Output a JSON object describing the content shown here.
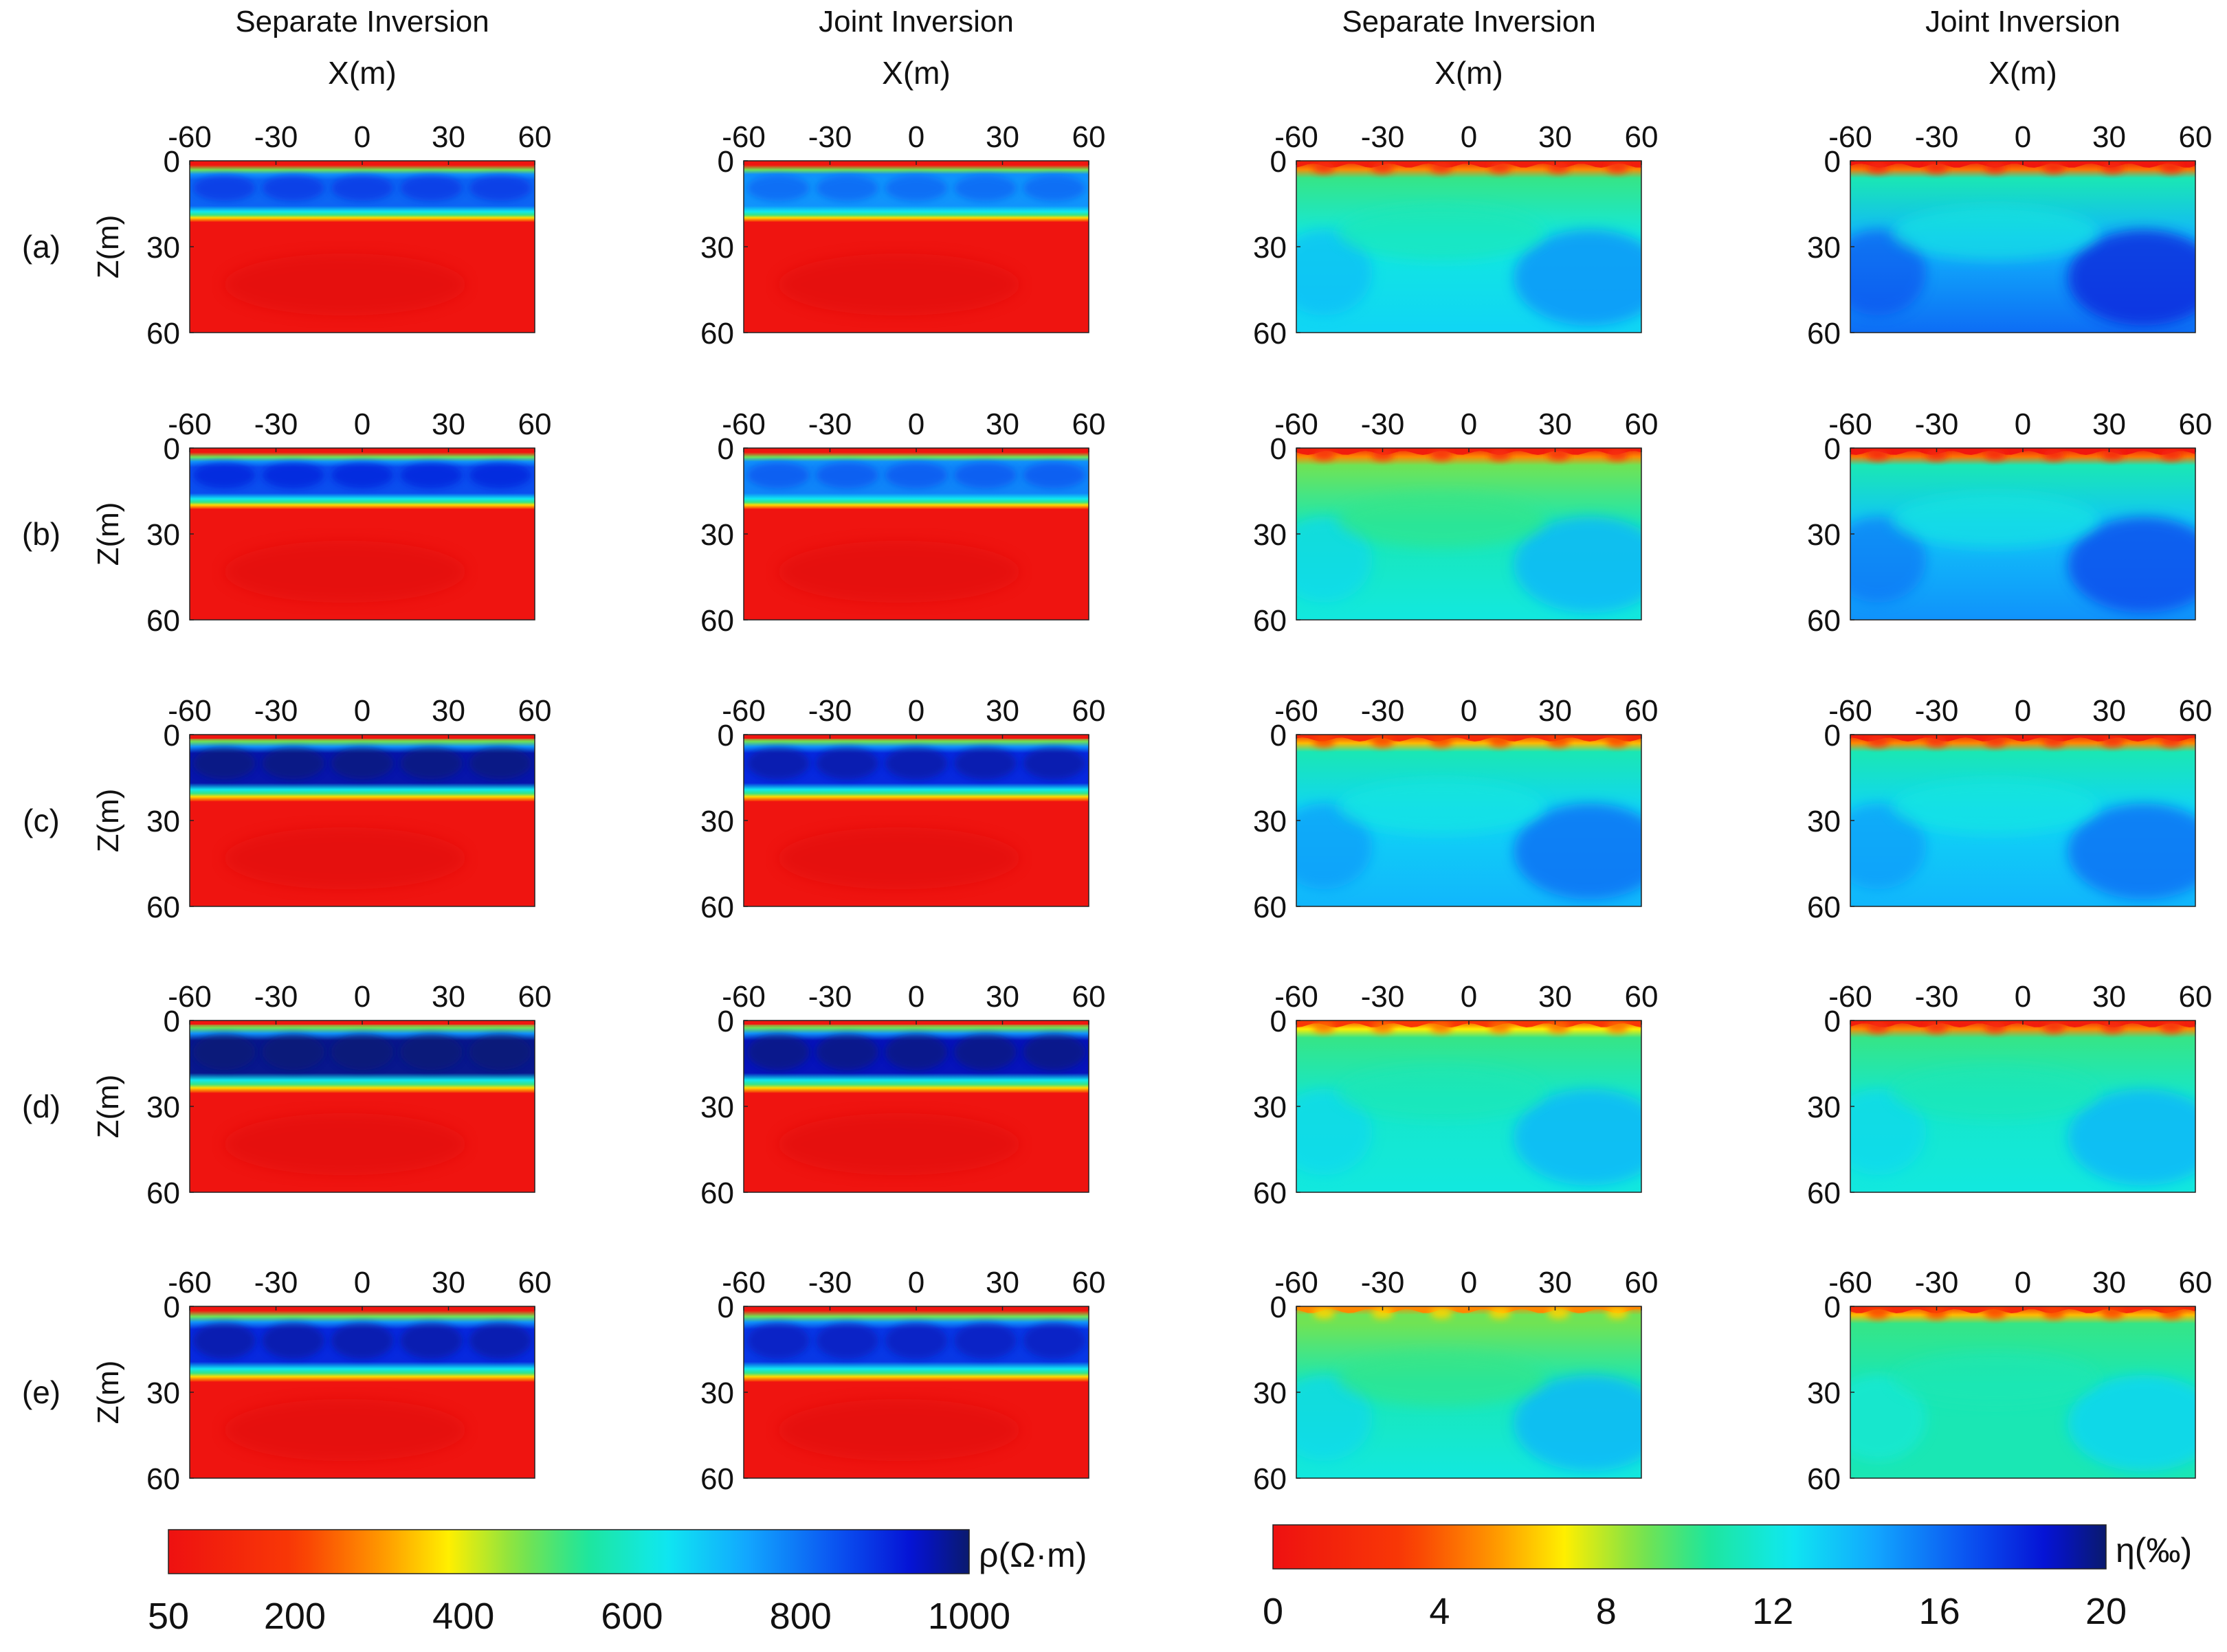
{
  "chart_data": {
    "type": "heatmap",
    "column_titles": [
      "Separate Inversion",
      "Joint Inversion",
      "Separate Inversion",
      "Joint Inversion"
    ],
    "xlabel": "X(m)",
    "ylabel": "Z(m)",
    "xlim": [
      -60,
      60
    ],
    "ylim": [
      0,
      60
    ],
    "x_ticks": [
      "-60",
      "-30",
      "0",
      "30",
      "60"
    ],
    "y_ticks": [
      "0",
      "30",
      "60"
    ],
    "row_labels": [
      "(a)",
      "(b)",
      "(c)",
      "(d)",
      "(e)"
    ],
    "panels": [
      {
        "row": "(a)",
        "column": "Separate Inversion",
        "quantity": "resistivity",
        "layer_top_m": 3,
        "layer_bottom_m": 16,
        "layer_value": 820,
        "surface_value": 60,
        "background_value": 60
      },
      {
        "row": "(a)",
        "column": "Joint Inversion",
        "quantity": "resistivity",
        "layer_top_m": 3,
        "layer_bottom_m": 16,
        "layer_value": 760,
        "surface_value": 60,
        "background_value": 60
      },
      {
        "row": "(a)",
        "column": "Separate Inversion",
        "quantity": "polarizability",
        "surface_value": 1,
        "shallow_value": 10,
        "deep_value": 14
      },
      {
        "row": "(a)",
        "column": "Joint Inversion",
        "quantity": "polarizability",
        "surface_value": 0.5,
        "shallow_value": 11,
        "deep_value": 17
      },
      {
        "row": "(b)",
        "column": "Separate Inversion",
        "quantity": "resistivity",
        "layer_top_m": 3,
        "layer_bottom_m": 16,
        "layer_value": 850,
        "surface_value": 60,
        "background_value": 60
      },
      {
        "row": "(b)",
        "column": "Joint Inversion",
        "quantity": "resistivity",
        "layer_top_m": 3,
        "layer_bottom_m": 16,
        "layer_value": 780,
        "surface_value": 60,
        "background_value": 60
      },
      {
        "row": "(b)",
        "column": "Separate Inversion",
        "quantity": "polarizability",
        "surface_value": 1,
        "shallow_value": 9,
        "deep_value": 13
      },
      {
        "row": "(b)",
        "column": "Joint Inversion",
        "quantity": "polarizability",
        "surface_value": 0.5,
        "shallow_value": 11,
        "deep_value": 16
      },
      {
        "row": "(c)",
        "column": "Separate Inversion",
        "quantity": "resistivity",
        "layer_top_m": 2,
        "layer_bottom_m": 18,
        "layer_value": 960,
        "surface_value": 60,
        "background_value": 60
      },
      {
        "row": "(c)",
        "column": "Joint Inversion",
        "quantity": "resistivity",
        "layer_top_m": 2,
        "layer_bottom_m": 18,
        "layer_value": 900,
        "surface_value": 60,
        "background_value": 60
      },
      {
        "row": "(c)",
        "column": "Separate Inversion",
        "quantity": "polarizability",
        "surface_value": 2,
        "shallow_value": 11,
        "deep_value": 15
      },
      {
        "row": "(c)",
        "column": "Joint Inversion",
        "quantity": "polarizability",
        "surface_value": 1,
        "shallow_value": 11,
        "deep_value": 15
      },
      {
        "row": "(d)",
        "column": "Separate Inversion",
        "quantity": "resistivity",
        "layer_top_m": 2,
        "layer_bottom_m": 20,
        "layer_value": 980,
        "surface_value": 60,
        "background_value": 60
      },
      {
        "row": "(d)",
        "column": "Joint Inversion",
        "quantity": "resistivity",
        "layer_top_m": 2,
        "layer_bottom_m": 20,
        "layer_value": 950,
        "surface_value": 60,
        "background_value": 60
      },
      {
        "row": "(d)",
        "column": "Separate Inversion",
        "quantity": "polarizability",
        "surface_value": 3,
        "shallow_value": 10,
        "deep_value": 13
      },
      {
        "row": "(d)",
        "column": "Joint Inversion",
        "quantity": "polarizability",
        "surface_value": 1,
        "shallow_value": 10,
        "deep_value": 13
      },
      {
        "row": "(e)",
        "column": "Separate Inversion",
        "quantity": "resistivity",
        "layer_top_m": 3,
        "layer_bottom_m": 21,
        "layer_value": 900,
        "surface_value": 60,
        "background_value": 60
      },
      {
        "row": "(e)",
        "column": "Joint Inversion",
        "quantity": "resistivity",
        "layer_top_m": 3,
        "layer_bottom_m": 21,
        "layer_value": 880,
        "surface_value": 60,
        "background_value": 60
      },
      {
        "row": "(e)",
        "column": "Separate Inversion",
        "quantity": "polarizability",
        "surface_value": 5,
        "shallow_value": 9,
        "deep_value": 13
      },
      {
        "row": "(e)",
        "column": "Joint Inversion",
        "quantity": "polarizability",
        "surface_value": 2,
        "shallow_value": 10,
        "deep_value": 12
      }
    ],
    "colorbars": [
      {
        "label": "ρ(Ω·m)",
        "min": 50,
        "max": 1000,
        "ticks": [
          "50",
          "200",
          "400",
          "600",
          "800",
          "1000"
        ],
        "colormap": "jet_reversed"
      },
      {
        "label": "η(‰)",
        "min": 0,
        "max": 20,
        "ticks": [
          "0",
          "4",
          "8",
          "12",
          "16",
          "20"
        ],
        "colormap": "jet_reversed"
      }
    ]
  }
}
